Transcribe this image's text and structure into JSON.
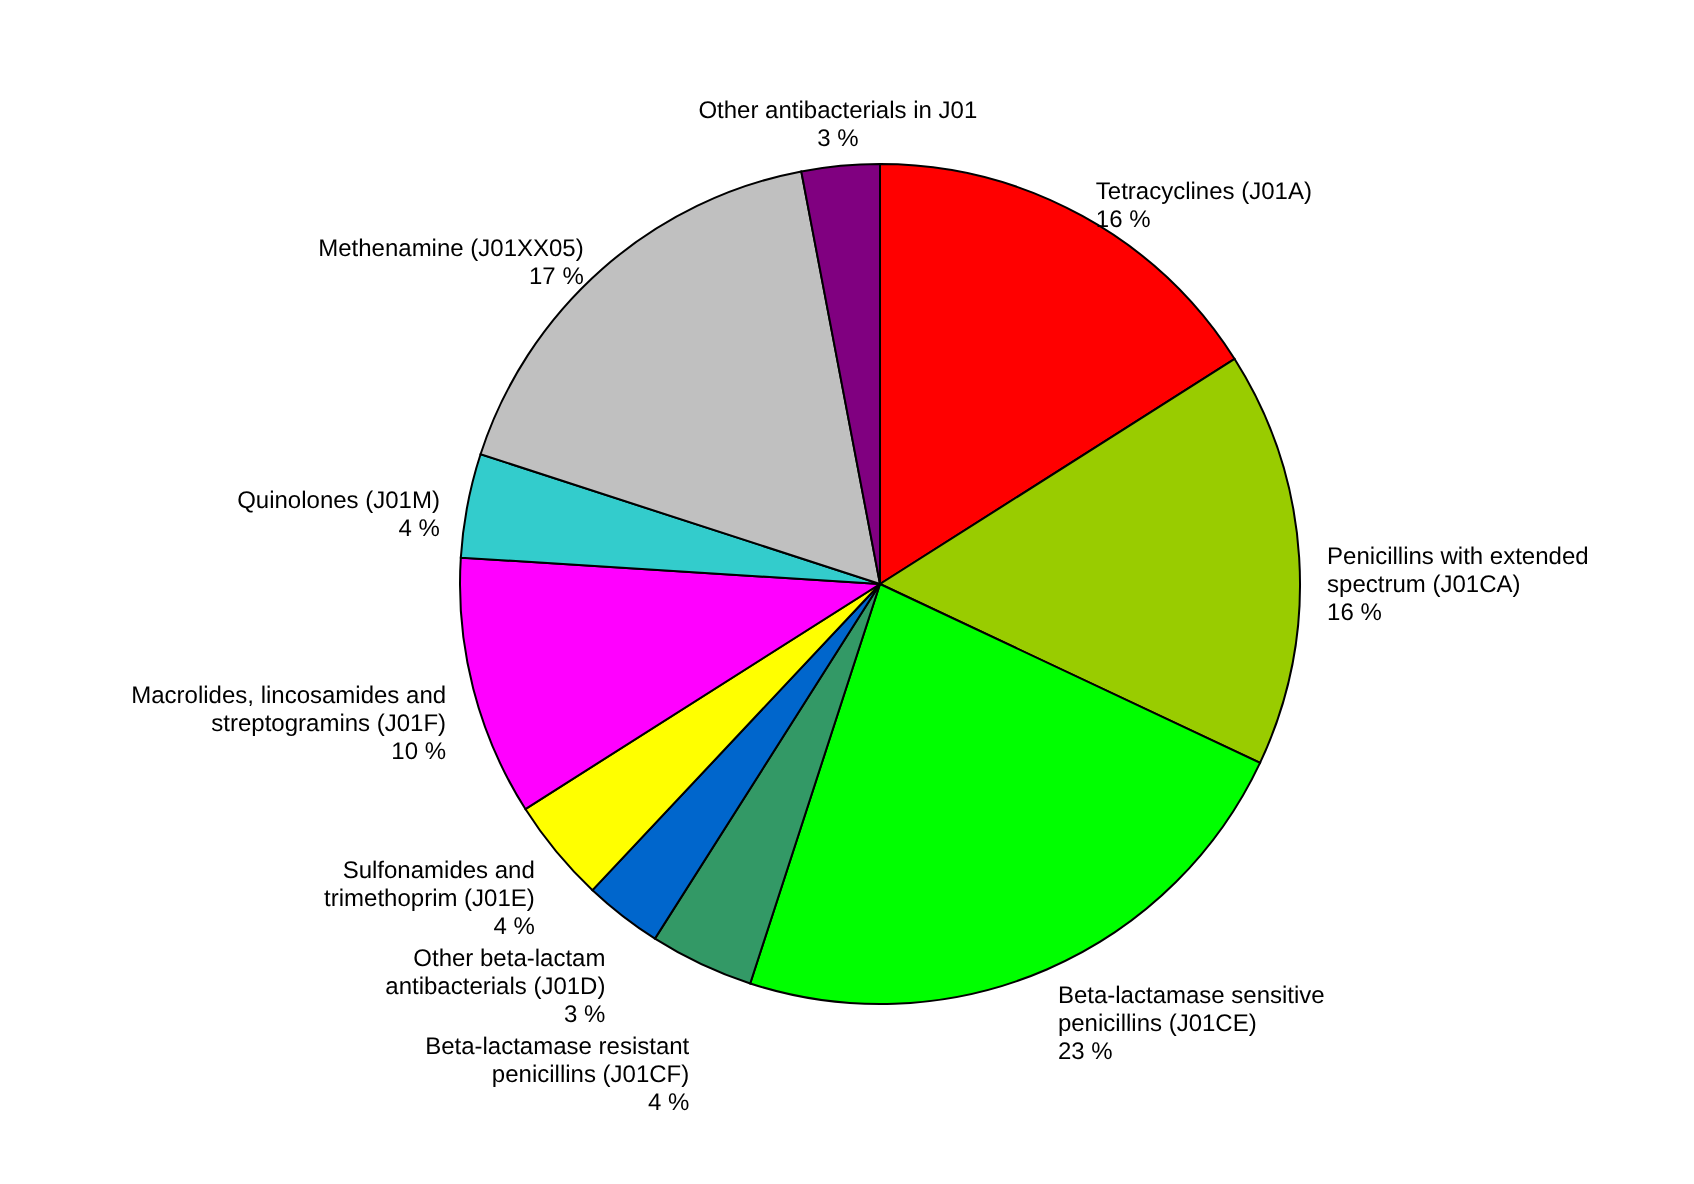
{
  "chart_data": {
    "type": "pie",
    "categories": [
      "Tetracyclines (J01A)",
      "Penicillins with extended spectrum (J01CA)",
      "Beta-lactamase sensitive penicillins (J01CE)",
      "Beta-lactamase resistant penicillins (J01CF)",
      "Other beta-lactam antibacterials (J01D)",
      "Sulfonamides and trimethoprim (J01E)",
      "Macrolides, lincosamides and streptogramins (J01F)",
      "Quinolones (J01M)",
      "Methenamine (J01XX05)",
      "Other antibacterials in J01"
    ],
    "values": [
      16,
      16,
      23,
      4,
      3,
      4,
      10,
      4,
      17,
      3
    ],
    "value_labels": [
      "16 %",
      "16 %",
      "23 %",
      "4 %",
      "3 %",
      "4 %",
      "10 %",
      "4 %",
      "17 %",
      "3 %"
    ],
    "colors": [
      "#ff0000",
      "#99cc00",
      "#00ff00",
      "#339966",
      "#0066cc",
      "#ffff00",
      "#ff00ff",
      "#33cccc",
      "#c0c0c0",
      "#800080"
    ]
  }
}
